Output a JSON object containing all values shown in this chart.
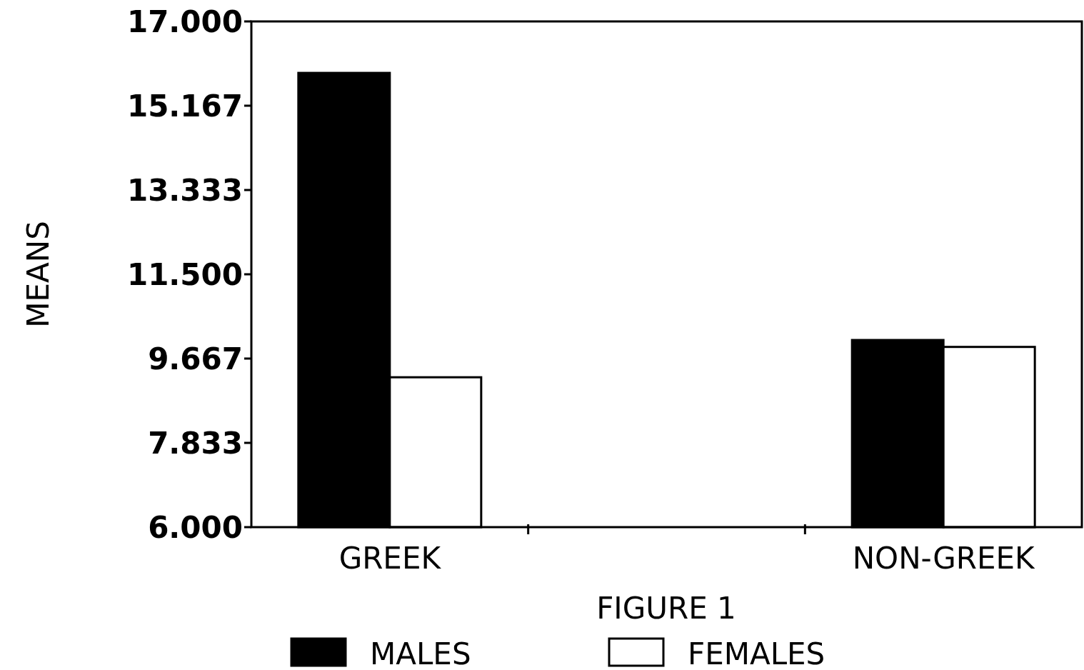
{
  "chart_data": {
    "type": "bar",
    "title": "FIGURE 1",
    "ylabel": "MEANS",
    "categories": [
      "GREEK",
      null,
      "NON-GREEK"
    ],
    "series": [
      {
        "name": "MALES",
        "color": "#000000",
        "values": [
          15.88,
          null,
          10.07
        ]
      },
      {
        "name": "FEMALES",
        "color": "#ffffff",
        "values": [
          9.26,
          null,
          9.92
        ]
      }
    ],
    "ylim": [
      6,
      17
    ],
    "yticks": [
      {
        "value": 6,
        "label": "6.000"
      },
      {
        "value": 7.833,
        "label": "7.833"
      },
      {
        "value": 9.667,
        "label": "9.667"
      },
      {
        "value": 11.5,
        "label": "11.500"
      },
      {
        "value": 13.333,
        "label": "13.333"
      },
      {
        "value": 15.167,
        "label": "15.167"
      },
      {
        "value": 17,
        "label": "17.000"
      }
    ],
    "grid": false,
    "legend": "bottom"
  }
}
